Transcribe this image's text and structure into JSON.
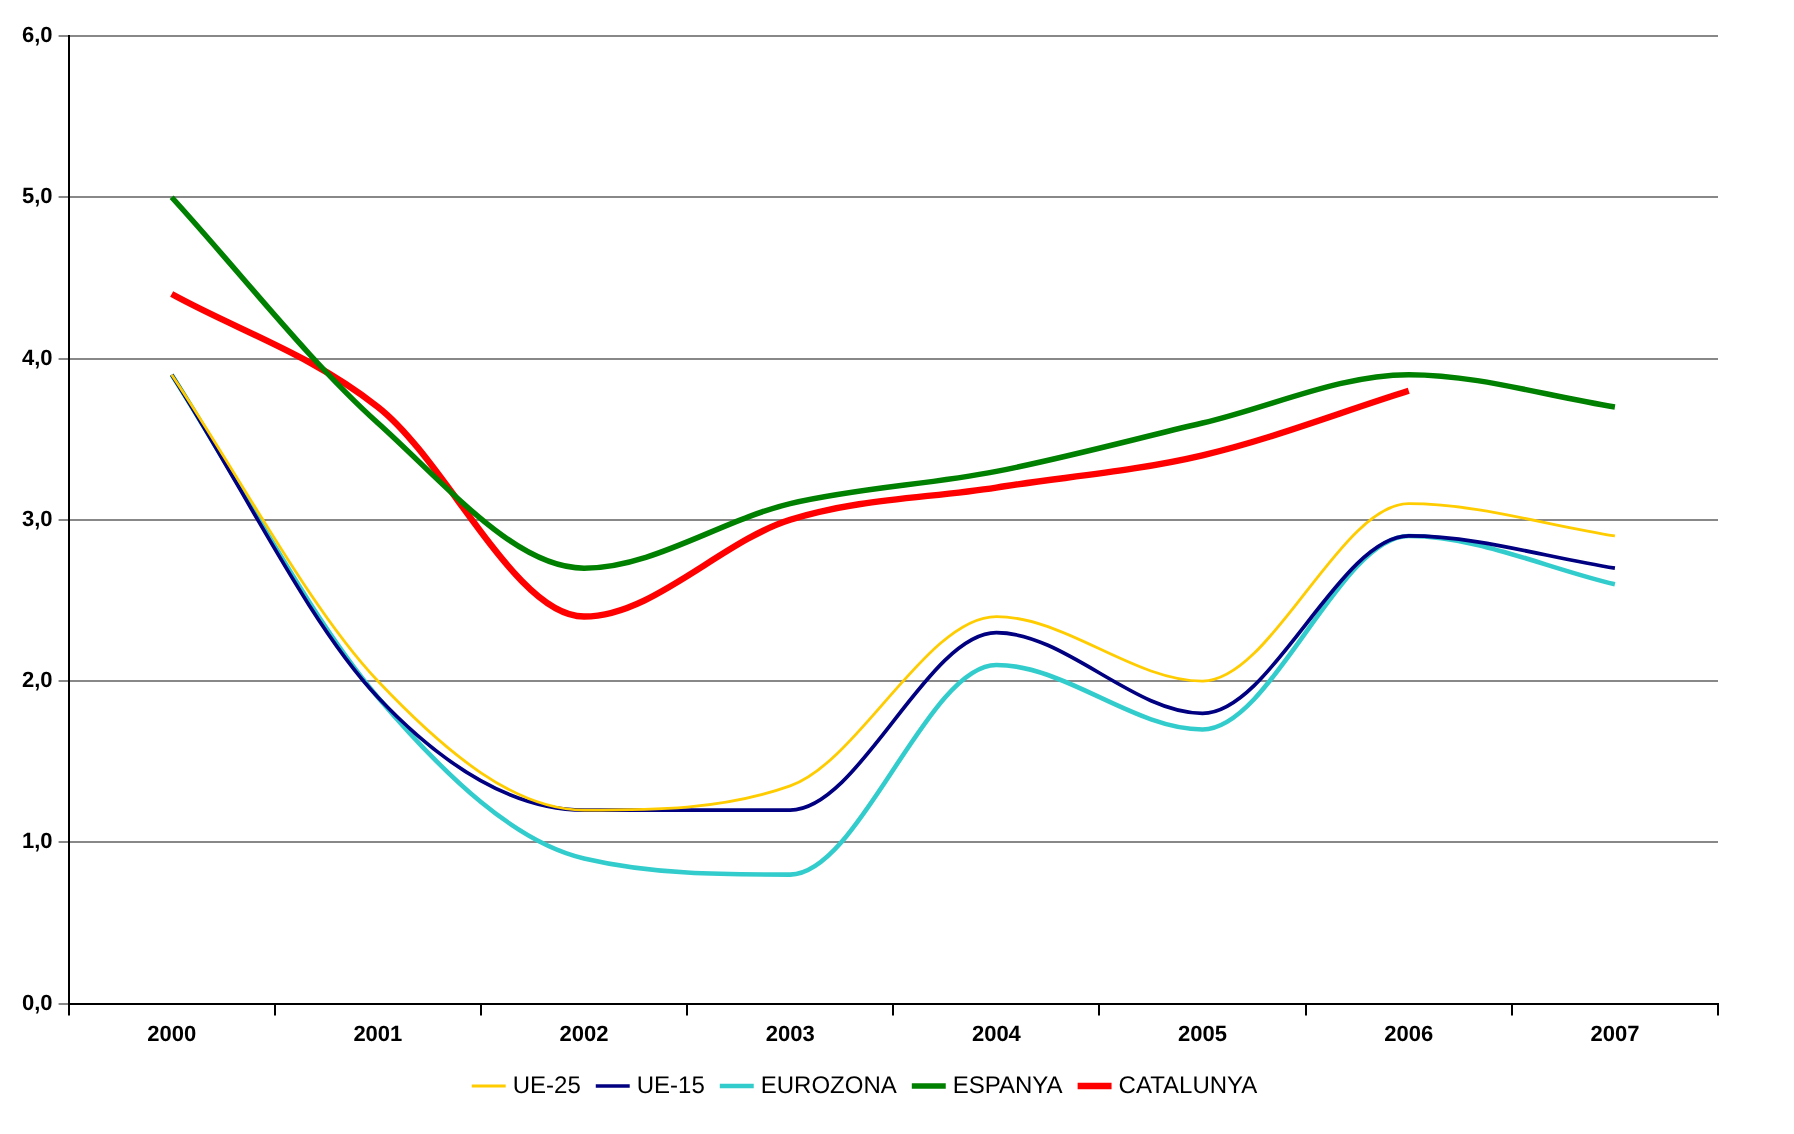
{
  "chart_data": {
    "type": "line",
    "categories": [
      "2000",
      "2001",
      "2002",
      "2003",
      "2004",
      "2005",
      "2006",
      "2007"
    ],
    "series": [
      {
        "name": "UE-25",
        "color": "#ffcc00",
        "values": [
          3.9,
          2.0,
          1.2,
          1.35,
          2.4,
          2.0,
          3.1,
          2.9
        ]
      },
      {
        "name": "UE-15",
        "color": "#000080",
        "values": [
          3.9,
          1.9,
          1.2,
          1.2,
          2.3,
          1.8,
          2.9,
          2.7
        ]
      },
      {
        "name": "EUROZONA",
        "color": "#33cccc",
        "values": [
          3.9,
          1.9,
          0.9,
          0.8,
          2.1,
          1.7,
          2.9,
          2.6
        ]
      },
      {
        "name": "ESPANYA",
        "color": "#008000",
        "values": [
          5.0,
          3.6,
          2.7,
          3.1,
          3.3,
          3.6,
          3.9,
          3.7
        ]
      },
      {
        "name": "CATALUNYA",
        "color": "#ff0000",
        "values": [
          4.4,
          3.7,
          2.4,
          3.0,
          3.2,
          3.4,
          3.8,
          null
        ]
      }
    ],
    "ylim": [
      0,
      6
    ],
    "yticks": [
      {
        "value": 0,
        "label": "0,0"
      },
      {
        "value": 1,
        "label": "1,0"
      },
      {
        "value": 2,
        "label": "2,0"
      },
      {
        "value": 3,
        "label": "3,0"
      },
      {
        "value": 4,
        "label": "4,0"
      },
      {
        "value": 5,
        "label": "5,0"
      },
      {
        "value": 6,
        "label": "6,0"
      }
    ],
    "grid": "y",
    "legend": "bottom",
    "marker": "none",
    "line_style": "solid"
  }
}
